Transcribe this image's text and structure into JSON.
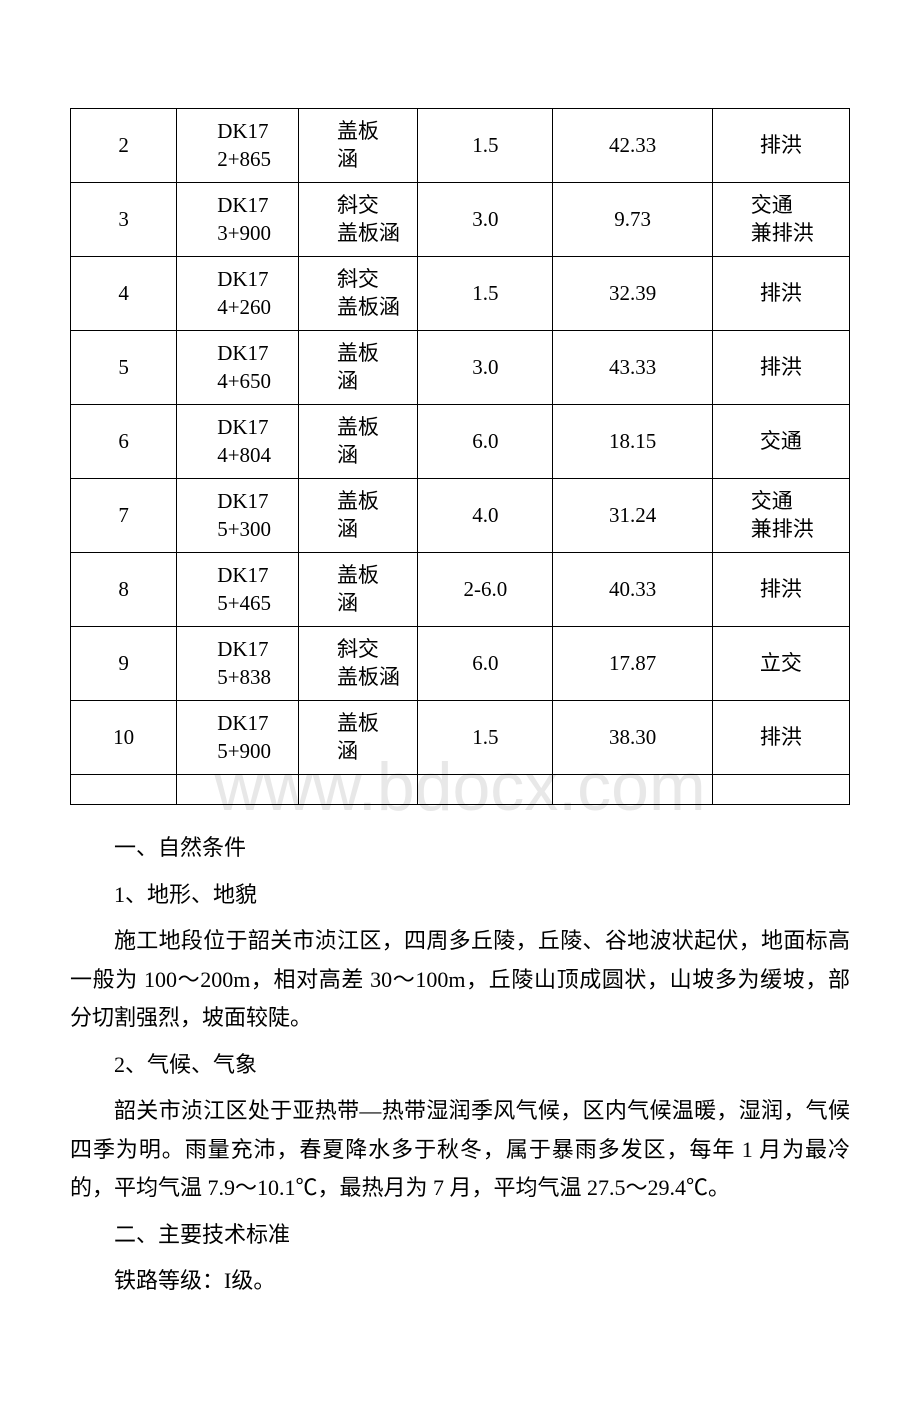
{
  "watermark": "www.bdocx.com",
  "table": {
    "rows": [
      {
        "idx": "2",
        "code": "DK17\n2+865",
        "type": "盖板\n涵",
        "v1": "1.5",
        "v2": "42.33",
        "note": "排洪",
        "noteTwoLine": false
      },
      {
        "idx": "3",
        "code": "DK17\n3+900",
        "type": "斜交\n盖板涵",
        "v1": "3.0",
        "v2": "9.73",
        "note": "交通\n兼排洪",
        "noteTwoLine": true
      },
      {
        "idx": "4",
        "code": "DK17\n4+260",
        "type": "斜交\n盖板涵",
        "v1": "1.5",
        "v2": "32.39",
        "note": "排洪",
        "noteTwoLine": false
      },
      {
        "idx": "5",
        "code": "DK17\n4+650",
        "type": "盖板\n涵",
        "v1": "3.0",
        "v2": "43.33",
        "note": "排洪",
        "noteTwoLine": false
      },
      {
        "idx": "6",
        "code": "DK17\n4+804",
        "type": "盖板\n涵",
        "v1": "6.0",
        "v2": "18.15",
        "note": "交通",
        "noteTwoLine": false
      },
      {
        "idx": "7",
        "code": "DK17\n5+300",
        "type": "盖板\n涵",
        "v1": "4.0",
        "v2": "31.24",
        "note": "交通\n兼排洪",
        "noteTwoLine": true
      },
      {
        "idx": "8",
        "code": "DK17\n5+465",
        "type": "盖板\n涵",
        "v1": "2-6.0",
        "v2": "40.33",
        "note": "排洪",
        "noteTwoLine": false
      },
      {
        "idx": "9",
        "code": "DK17\n5+838",
        "type": "斜交\n盖板涵",
        "v1": "6.0",
        "v2": "17.87",
        "note": "立交",
        "noteTwoLine": false
      },
      {
        "idx": "10",
        "code": "DK17\n5+900",
        "type": "盖板\n涵",
        "v1": "1.5",
        "v2": "38.30",
        "note": "排洪",
        "noteTwoLine": false
      }
    ]
  },
  "paragraphs": {
    "h1": "一、自然条件",
    "p1": "1、地形、地貌",
    "p2": "施工地段位于韶关市浈江区，四周多丘陵，丘陵、谷地波状起伏，地面标高一般为 100～200m，相对高差 30～100m，丘陵山顶成圆状，山坡多为缓坡，部分切割强烈，坡面较陡。",
    "p3": "2、气候、气象",
    "p4": "韶关市浈江区处于亚热带—热带湿润季风气候，区内气候温暖，湿润，气候四季为明。雨量充沛，春夏降水多于秋冬，属于暴雨多发区，每年 1 月为最冷的，平均气温 7.9～10.1℃，最热月为 7 月，平均气温 27.5～29.4℃。",
    "h2": "二、主要技术标准",
    "p5": "铁路等级：I级。"
  }
}
